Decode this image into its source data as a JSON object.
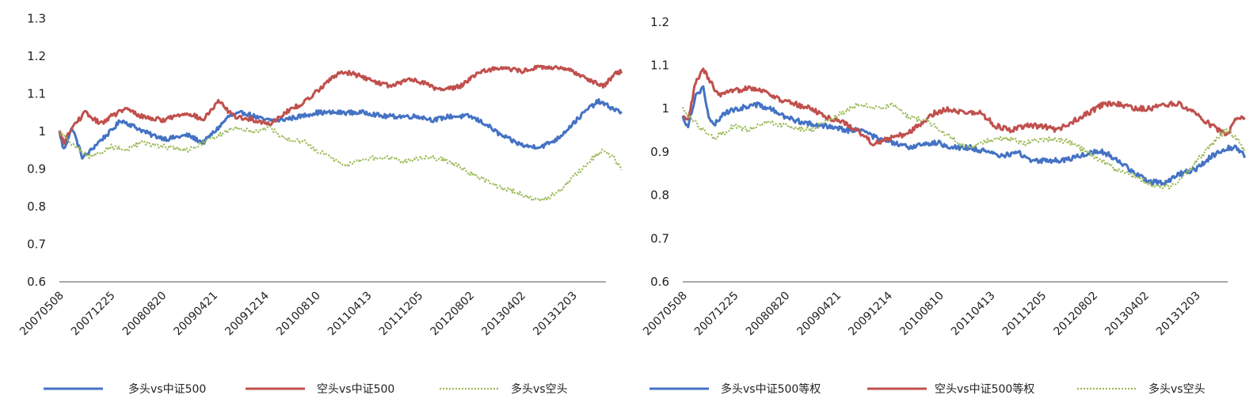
{
  "chart_data": [
    {
      "type": "line",
      "title": "",
      "xlabel": "",
      "ylabel": "",
      "ylim": [
        0.6,
        1.3
      ],
      "yticks": [
        "0.6",
        "0.7",
        "0.8",
        "0.9",
        "1",
        "1.1",
        "1.2",
        "1.3"
      ],
      "categories": [
        "20070508",
        "20071225",
        "20080820",
        "20090421",
        "20091214",
        "20100810",
        "20110413",
        "20111205",
        "20120802",
        "20130402",
        "20131203"
      ],
      "grid": false,
      "legend_position": "bottom",
      "series": [
        {
          "name": "多头vs中证500",
          "color": "#4472C4",
          "style": "solid",
          "points": [
            [
              0,
              1.0
            ],
            [
              0.08,
              0.95
            ],
            [
              0.25,
              1.01
            ],
            [
              0.45,
              0.93
            ],
            [
              0.55,
              0.94
            ],
            [
              0.75,
              0.97
            ],
            [
              1.0,
              1.0
            ],
            [
              1.2,
              1.03
            ],
            [
              1.5,
              1.01
            ],
            [
              1.8,
              0.99
            ],
            [
              2.1,
              0.98
            ],
            [
              2.5,
              0.99
            ],
            [
              2.8,
              0.97
            ],
            [
              3.1,
              1.01
            ],
            [
              3.3,
              1.04
            ],
            [
              3.6,
              1.05
            ],
            [
              4.0,
              1.03
            ],
            [
              4.3,
              1.03
            ],
            [
              4.7,
              1.04
            ],
            [
              5.0,
              1.05
            ],
            [
              5.3,
              1.05
            ],
            [
              5.7,
              1.05
            ],
            [
              6.0,
              1.05
            ],
            [
              6.3,
              1.04
            ],
            [
              6.6,
              1.04
            ],
            [
              7.0,
              1.04
            ],
            [
              7.3,
              1.03
            ],
            [
              7.6,
              1.04
            ],
            [
              8.0,
              1.04
            ],
            [
              8.3,
              1.02
            ],
            [
              8.6,
              0.99
            ],
            [
              8.9,
              0.97
            ],
            [
              9.1,
              0.96
            ],
            [
              9.4,
              0.96
            ],
            [
              9.7,
              0.98
            ],
            [
              10.0,
              1.02
            ],
            [
              10.3,
              1.06
            ],
            [
              10.5,
              1.08
            ],
            [
              10.8,
              1.06
            ],
            [
              10.95,
              1.05
            ]
          ]
        },
        {
          "name": "空头vs中证500",
          "color": "#C0504D",
          "style": "solid",
          "points": [
            [
              0,
              1.0
            ],
            [
              0.08,
              0.97
            ],
            [
              0.3,
              1.02
            ],
            [
              0.5,
              1.05
            ],
            [
              0.8,
              1.02
            ],
            [
              1.0,
              1.04
            ],
            [
              1.3,
              1.06
            ],
            [
              1.6,
              1.04
            ],
            [
              2.0,
              1.03
            ],
            [
              2.5,
              1.05
            ],
            [
              2.8,
              1.03
            ],
            [
              3.1,
              1.08
            ],
            [
              3.4,
              1.04
            ],
            [
              3.8,
              1.03
            ],
            [
              4.1,
              1.02
            ],
            [
              4.4,
              1.05
            ],
            [
              4.8,
              1.08
            ],
            [
              5.2,
              1.13
            ],
            [
              5.5,
              1.16
            ],
            [
              5.8,
              1.15
            ],
            [
              6.2,
              1.13
            ],
            [
              6.5,
              1.12
            ],
            [
              6.8,
              1.14
            ],
            [
              7.1,
              1.13
            ],
            [
              7.4,
              1.11
            ],
            [
              7.8,
              1.12
            ],
            [
              8.2,
              1.16
            ],
            [
              8.6,
              1.17
            ],
            [
              9.0,
              1.16
            ],
            [
              9.3,
              1.17
            ],
            [
              9.6,
              1.17
            ],
            [
              10.0,
              1.16
            ],
            [
              10.3,
              1.14
            ],
            [
              10.6,
              1.12
            ],
            [
              10.8,
              1.15
            ],
            [
              10.95,
              1.16
            ]
          ]
        },
        {
          "name": "多头vs空头",
          "color": "#9BBB59",
          "style": "dotted",
          "points": [
            [
              0,
              1.0
            ],
            [
              0.3,
              0.96
            ],
            [
              0.6,
              0.93
            ],
            [
              1.0,
              0.96
            ],
            [
              1.3,
              0.95
            ],
            [
              1.6,
              0.97
            ],
            [
              2.0,
              0.96
            ],
            [
              2.5,
              0.95
            ],
            [
              2.8,
              0.97
            ],
            [
              3.1,
              0.99
            ],
            [
              3.4,
              1.01
            ],
            [
              3.8,
              1.0
            ],
            [
              4.1,
              1.01
            ],
            [
              4.4,
              0.98
            ],
            [
              4.8,
              0.97
            ],
            [
              5.0,
              0.95
            ],
            [
              5.3,
              0.93
            ],
            [
              5.5,
              0.91
            ],
            [
              5.8,
              0.92
            ],
            [
              6.1,
              0.93
            ],
            [
              6.4,
              0.93
            ],
            [
              6.7,
              0.92
            ],
            [
              7.0,
              0.93
            ],
            [
              7.3,
              0.93
            ],
            [
              7.6,
              0.92
            ],
            [
              8.0,
              0.89
            ],
            [
              8.3,
              0.87
            ],
            [
              8.6,
              0.85
            ],
            [
              8.9,
              0.84
            ],
            [
              9.2,
              0.82
            ],
            [
              9.5,
              0.82
            ],
            [
              9.8,
              0.85
            ],
            [
              10.1,
              0.89
            ],
            [
              10.4,
              0.93
            ],
            [
              10.6,
              0.95
            ],
            [
              10.8,
              0.93
            ],
            [
              10.95,
              0.9
            ]
          ]
        }
      ]
    },
    {
      "type": "line",
      "title": "",
      "xlabel": "",
      "ylabel": "",
      "ylim": [
        0.6,
        1.2
      ],
      "yticks": [
        "0.6",
        "0.7",
        "0.8",
        "0.9",
        "1",
        "1.1",
        "1.2"
      ],
      "categories": [
        "20070508",
        "20071225",
        "20080820",
        "20090421",
        "20091214",
        "20100810",
        "20110413",
        "20111205",
        "20120802",
        "20130402",
        "20131203"
      ],
      "grid": false,
      "legend_position": "bottom",
      "series": [
        {
          "name": "多头vs中证500等权",
          "color": "#4472C4",
          "style": "solid",
          "points": [
            [
              0,
              0.98
            ],
            [
              0.1,
              0.96
            ],
            [
              0.25,
              1.03
            ],
            [
              0.4,
              1.05
            ],
            [
              0.5,
              0.98
            ],
            [
              0.6,
              0.96
            ],
            [
              0.8,
              0.99
            ],
            [
              1.1,
              1.0
            ],
            [
              1.4,
              1.01
            ],
            [
              1.7,
              1.0
            ],
            [
              2.0,
              0.98
            ],
            [
              2.3,
              0.97
            ],
            [
              2.6,
              0.96
            ],
            [
              2.9,
              0.96
            ],
            [
              3.2,
              0.95
            ],
            [
              3.5,
              0.95
            ],
            [
              3.8,
              0.93
            ],
            [
              4.1,
              0.92
            ],
            [
              4.4,
              0.91
            ],
            [
              4.7,
              0.92
            ],
            [
              5.0,
              0.92
            ],
            [
              5.3,
              0.91
            ],
            [
              5.6,
              0.91
            ],
            [
              5.9,
              0.9
            ],
            [
              6.2,
              0.89
            ],
            [
              6.5,
              0.9
            ],
            [
              6.8,
              0.88
            ],
            [
              7.1,
              0.88
            ],
            [
              7.4,
              0.88
            ],
            [
              7.7,
              0.89
            ],
            [
              8.0,
              0.9
            ],
            [
              8.2,
              0.9
            ],
            [
              8.5,
              0.88
            ],
            [
              8.8,
              0.85
            ],
            [
              9.1,
              0.83
            ],
            [
              9.4,
              0.83
            ],
            [
              9.7,
              0.85
            ],
            [
              10.0,
              0.86
            ],
            [
              10.3,
              0.89
            ],
            [
              10.6,
              0.91
            ],
            [
              10.8,
              0.91
            ],
            [
              10.95,
              0.89
            ]
          ]
        },
        {
          "name": "空头vs中证500等权",
          "color": "#C0504D",
          "style": "solid",
          "points": [
            [
              0,
              0.98
            ],
            [
              0.1,
              0.97
            ],
            [
              0.25,
              1.06
            ],
            [
              0.4,
              1.09
            ],
            [
              0.55,
              1.06
            ],
            [
              0.7,
              1.03
            ],
            [
              1.0,
              1.04
            ],
            [
              1.3,
              1.05
            ],
            [
              1.6,
              1.04
            ],
            [
              1.9,
              1.02
            ],
            [
              2.2,
              1.01
            ],
            [
              2.5,
              1.0
            ],
            [
              2.8,
              0.98
            ],
            [
              3.1,
              0.97
            ],
            [
              3.4,
              0.95
            ],
            [
              3.7,
              0.92
            ],
            [
              4.0,
              0.93
            ],
            [
              4.3,
              0.94
            ],
            [
              4.6,
              0.96
            ],
            [
              4.9,
              0.99
            ],
            [
              5.2,
              1.0
            ],
            [
              5.5,
              0.99
            ],
            [
              5.8,
              0.99
            ],
            [
              6.1,
              0.96
            ],
            [
              6.4,
              0.95
            ],
            [
              6.7,
              0.96
            ],
            [
              7.0,
              0.96
            ],
            [
              7.3,
              0.95
            ],
            [
              7.6,
              0.97
            ],
            [
              7.9,
              0.99
            ],
            [
              8.2,
              1.01
            ],
            [
              8.5,
              1.01
            ],
            [
              8.8,
              1.0
            ],
            [
              9.1,
              1.0
            ],
            [
              9.4,
              1.01
            ],
            [
              9.7,
              1.01
            ],
            [
              10.0,
              0.99
            ],
            [
              10.3,
              0.96
            ],
            [
              10.6,
              0.94
            ],
            [
              10.8,
              0.98
            ],
            [
              10.95,
              0.98
            ]
          ]
        },
        {
          "name": "多头vs空头",
          "color": "#9BBB59",
          "style": "dotted",
          "points": [
            [
              0,
              1.0
            ],
            [
              0.3,
              0.96
            ],
            [
              0.6,
              0.93
            ],
            [
              1.0,
              0.96
            ],
            [
              1.3,
              0.95
            ],
            [
              1.6,
              0.97
            ],
            [
              2.0,
              0.96
            ],
            [
              2.5,
              0.95
            ],
            [
              2.8,
              0.97
            ],
            [
              3.1,
              0.99
            ],
            [
              3.4,
              1.01
            ],
            [
              3.8,
              1.0
            ],
            [
              4.1,
              1.01
            ],
            [
              4.4,
              0.98
            ],
            [
              4.8,
              0.97
            ],
            [
              5.0,
              0.95
            ],
            [
              5.3,
              0.93
            ],
            [
              5.5,
              0.91
            ],
            [
              5.8,
              0.92
            ],
            [
              6.1,
              0.93
            ],
            [
              6.4,
              0.93
            ],
            [
              6.7,
              0.92
            ],
            [
              7.0,
              0.93
            ],
            [
              7.3,
              0.93
            ],
            [
              7.6,
              0.92
            ],
            [
              8.0,
              0.89
            ],
            [
              8.3,
              0.87
            ],
            [
              8.6,
              0.85
            ],
            [
              8.9,
              0.84
            ],
            [
              9.2,
              0.82
            ],
            [
              9.5,
              0.82
            ],
            [
              9.8,
              0.85
            ],
            [
              10.1,
              0.89
            ],
            [
              10.4,
              0.93
            ],
            [
              10.6,
              0.95
            ],
            [
              10.8,
              0.93
            ],
            [
              10.95,
              0.9
            ]
          ]
        }
      ]
    }
  ]
}
